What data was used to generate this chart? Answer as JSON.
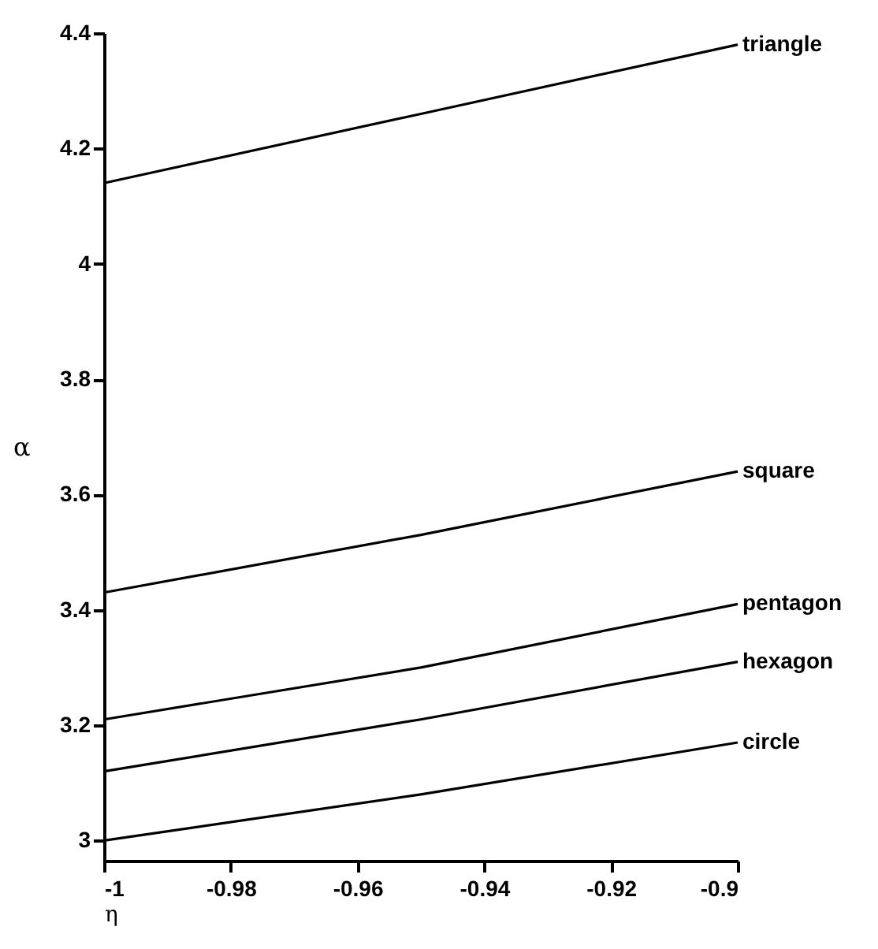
{
  "chart_data": {
    "type": "line",
    "xlabel": "η",
    "ylabel": "α",
    "x": [
      -1,
      -0.95,
      -0.9
    ],
    "series": [
      {
        "name": "triangle",
        "color": "#000000",
        "values": [
          4.14,
          4.26,
          4.38
        ]
      },
      {
        "name": "square",
        "color": "#000000",
        "values": [
          3.43,
          3.53,
          3.64
        ]
      },
      {
        "name": "pentagon",
        "color": "#000000",
        "values": [
          3.21,
          3.3,
          3.41
        ]
      },
      {
        "name": "hexagon",
        "color": "#000000",
        "values": [
          3.12,
          3.21,
          3.31
        ]
      },
      {
        "name": "circle",
        "color": "#000000",
        "values": [
          3.0,
          3.08,
          3.17
        ]
      }
    ],
    "xlim": [
      -1,
      -0.9
    ],
    "xticks": [
      -1,
      -0.98,
      -0.96,
      -0.94,
      -0.92,
      -0.9
    ],
    "ylim": [
      2.965,
      4.4
    ],
    "yticks": [
      3,
      3.2,
      3.4,
      3.6,
      3.8,
      4,
      4.2,
      4.4
    ],
    "grid": false,
    "legend": false,
    "marker": "none",
    "line_style": "solid"
  }
}
